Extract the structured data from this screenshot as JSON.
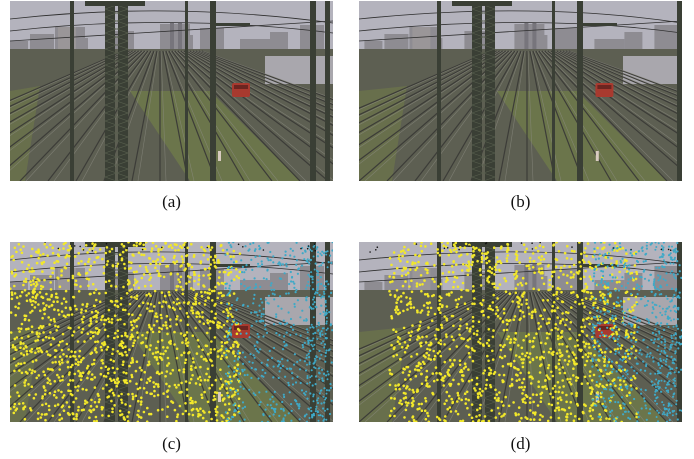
{
  "figure": {
    "panels": [
      {
        "id": "a",
        "caption": "(a)",
        "overlay": false,
        "view": "left"
      },
      {
        "id": "b",
        "caption": "(b)",
        "overlay": false,
        "view": "right"
      },
      {
        "id": "c",
        "caption": "(c)",
        "overlay": true,
        "view": "left"
      },
      {
        "id": "d",
        "caption": "(d)",
        "overlay": true,
        "view": "right"
      }
    ],
    "colors": {
      "sky": "#b4b3bd",
      "ground": "#5d5f52",
      "rails": "#3c3c38",
      "pylon": "#3a3f35",
      "grass": "#6f7a4a",
      "train": "#a83a2f",
      "foreground_points": "#f2e82a",
      "background_points": "#3fa9c7"
    }
  }
}
